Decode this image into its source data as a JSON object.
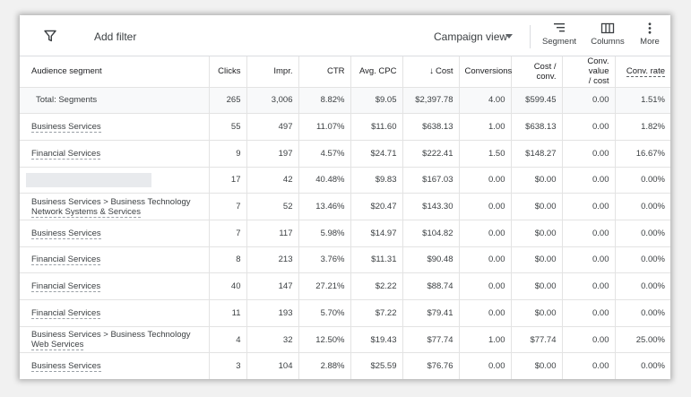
{
  "toolbar": {
    "add_filter": "Add filter",
    "campaign_view": "Campaign view",
    "segment": "Segment",
    "columns": "Columns",
    "more": "More",
    "icons": [
      "filter-icon",
      "chevron-down-icon",
      "segment-icon",
      "columns-icon",
      "more-vert-icon"
    ]
  },
  "table": {
    "headers": {
      "segment": "Audience segment",
      "clicks": "Clicks",
      "impr": "Impr.",
      "ctr": "CTR",
      "avg_cpc": "Avg. CPC",
      "sort_arrow": "↓",
      "cost": "Cost",
      "conversions": "Conversions",
      "cost_conv_1": "Cost /",
      "cost_conv_2": "conv.",
      "conv_value_1": "Conv. value",
      "conv_value_2": "/ cost",
      "conv_rate": "Conv. rate"
    },
    "total": {
      "label": "Total: Segments",
      "clicks": "265",
      "impr": "3,006",
      "ctr": "8.82%",
      "avg_cpc": "$9.05",
      "cost": "$2,397.78",
      "conversions": "4.00",
      "cost_conv": "$599.45",
      "conv_value": "0.00",
      "conv_rate": "1.51%"
    },
    "rows": [
      {
        "line1": "Business Services",
        "line2": "",
        "clicks": "55",
        "impr": "497",
        "ctr": "11.07%",
        "avg_cpc": "$11.60",
        "cost": "$638.13",
        "conversions": "1.00",
        "cost_conv": "$638.13",
        "conv_value": "0.00",
        "conv_rate": "1.82%"
      },
      {
        "line1": "Financial Services",
        "line2": "",
        "clicks": "9",
        "impr": "197",
        "ctr": "4.57%",
        "avg_cpc": "$24.71",
        "cost": "$222.41",
        "conversions": "1.50",
        "cost_conv": "$148.27",
        "conv_value": "0.00",
        "conv_rate": "16.67%"
      },
      {
        "line1": "",
        "line2": "",
        "clicks": "17",
        "impr": "42",
        "ctr": "40.48%",
        "avg_cpc": "$9.83",
        "cost": "$167.03",
        "conversions": "0.00",
        "cost_conv": "$0.00",
        "conv_value": "0.00",
        "conv_rate": "0.00%"
      },
      {
        "line1": "Business Services > Business Technology",
        "line2": "Network Systems & Services",
        "clicks": "7",
        "impr": "52",
        "ctr": "13.46%",
        "avg_cpc": "$20.47",
        "cost": "$143.30",
        "conversions": "0.00",
        "cost_conv": "$0.00",
        "conv_value": "0.00",
        "conv_rate": "0.00%"
      },
      {
        "line1": "Business Services",
        "line2": "",
        "clicks": "7",
        "impr": "117",
        "ctr": "5.98%",
        "avg_cpc": "$14.97",
        "cost": "$104.82",
        "conversions": "0.00",
        "cost_conv": "$0.00",
        "conv_value": "0.00",
        "conv_rate": "0.00%"
      },
      {
        "line1": "Financial Services",
        "line2": "",
        "clicks": "8",
        "impr": "213",
        "ctr": "3.76%",
        "avg_cpc": "$11.31",
        "cost": "$90.48",
        "conversions": "0.00",
        "cost_conv": "$0.00",
        "conv_value": "0.00",
        "conv_rate": "0.00%"
      },
      {
        "line1": "Financial Services",
        "line2": "",
        "clicks": "40",
        "impr": "147",
        "ctr": "27.21%",
        "avg_cpc": "$2.22",
        "cost": "$88.74",
        "conversions": "0.00",
        "cost_conv": "$0.00",
        "conv_value": "0.00",
        "conv_rate": "0.00%"
      },
      {
        "line1": "Financial Services",
        "line2": "",
        "clicks": "11",
        "impr": "193",
        "ctr": "5.70%",
        "avg_cpc": "$7.22",
        "cost": "$79.41",
        "conversions": "0.00",
        "cost_conv": "$0.00",
        "conv_value": "0.00",
        "conv_rate": "0.00%"
      },
      {
        "line1": "Business Services > Business Technology",
        "line2": "Web Services",
        "clicks": "4",
        "impr": "32",
        "ctr": "12.50%",
        "avg_cpc": "$19.43",
        "cost": "$77.74",
        "conversions": "1.00",
        "cost_conv": "$77.74",
        "conv_value": "0.00",
        "conv_rate": "25.00%"
      },
      {
        "line1": "Business Services",
        "line2": "",
        "clicks": "3",
        "impr": "104",
        "ctr": "2.88%",
        "avg_cpc": "$25.59",
        "cost": "$76.76",
        "conversions": "0.00",
        "cost_conv": "$0.00",
        "conv_value": "0.00",
        "conv_rate": "0.00%"
      }
    ]
  }
}
